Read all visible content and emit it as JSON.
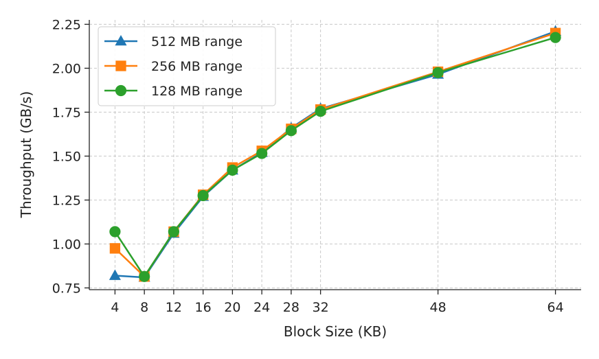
{
  "chart_data": {
    "type": "line",
    "xlabel": "Block Size (KB)",
    "ylabel": "Throughput (GB/s)",
    "x": [
      4,
      8,
      12,
      16,
      20,
      24,
      28,
      32,
      48,
      64
    ],
    "xticks": [
      4,
      8,
      12,
      16,
      20,
      24,
      28,
      32,
      48,
      64
    ],
    "xlim": [
      0.5,
      67.5
    ],
    "ylim": [
      0.74,
      2.275
    ],
    "yticks": [
      "0.75",
      "1.00",
      "1.25",
      "1.50",
      "1.75",
      "2.00",
      "2.25"
    ],
    "grid": true,
    "legend_position": "top-left",
    "series": [
      {
        "name": "512 MB range",
        "color": "#1f77b4",
        "marker": "triangle",
        "values": [
          0.82,
          0.81,
          1.06,
          1.27,
          1.42,
          1.52,
          1.66,
          1.77,
          1.965,
          2.21
        ]
      },
      {
        "name": "256 MB range",
        "color": "#ff7f0e",
        "marker": "square",
        "values": [
          0.975,
          0.815,
          1.07,
          1.28,
          1.435,
          1.53,
          1.655,
          1.765,
          1.98,
          2.2
        ]
      },
      {
        "name": "128 MB range",
        "color": "#2ca02c",
        "marker": "circle",
        "values": [
          1.07,
          0.815,
          1.07,
          1.275,
          1.42,
          1.515,
          1.645,
          1.755,
          1.975,
          2.175
        ]
      }
    ]
  }
}
